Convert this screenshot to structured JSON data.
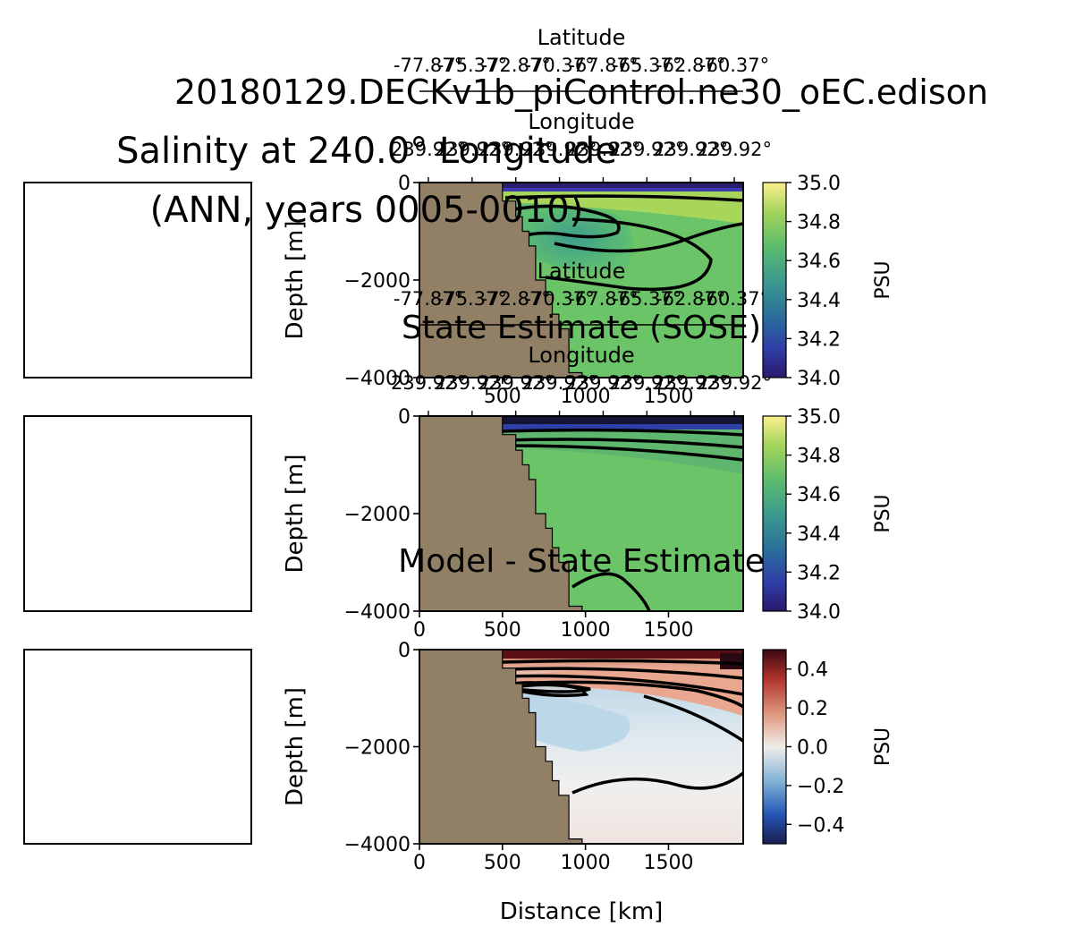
{
  "figure": {
    "title_line1": "Salinity at 240.0° Longitude",
    "title_line2": "(ANN, years 0005-0010)"
  },
  "chart_data": [
    {
      "type": "heatmap",
      "title": "20180129.DECKv1b_piControl.ne30_oEC.edison",
      "xlabel": "",
      "ylabel": "Depth [m]",
      "xlim": [
        0,
        1950
      ],
      "ylim": [
        -4000,
        0
      ],
      "xticks": [
        0,
        500,
        1000,
        1500
      ],
      "xtick_labels": [
        "",
        "500",
        "1000",
        "1500"
      ],
      "yticks": [
        0,
        -2000,
        -4000
      ],
      "ytick_labels": [
        "0",
        "−2000",
        "−4000"
      ],
      "secondary_axis_1_label": "Latitude",
      "secondary_axis_1_ticks": [
        "-77.87°",
        "-75.37°",
        "-72.87°",
        "-70.37°",
        "-67.87°",
        "-65.37°",
        "-62.87°",
        "-60.37°"
      ],
      "secondary_axis_2_label": "Longitude",
      "secondary_axis_2_ticks": [
        "239.92°",
        "239.92°",
        "239.92°",
        "239.92°",
        "239.92°",
        "239.92°",
        "239.92°",
        "239.92°"
      ],
      "colorbar_label": "PSU",
      "colormap": "haline",
      "colorbar_range": [
        34.0,
        35.0
      ],
      "colorbar_ticks": [
        "35.0",
        "34.8",
        "34.6",
        "34.4",
        "34.2",
        "34.0"
      ],
      "bathymetry": [
        [
          500,
          0
        ],
        [
          500,
          -380
        ],
        [
          580,
          -380
        ],
        [
          580,
          -700
        ],
        [
          620,
          -700
        ],
        [
          620,
          -1000
        ],
        [
          660,
          -1000
        ],
        [
          660,
          -1300
        ],
        [
          700,
          -1300
        ],
        [
          700,
          -2000
        ],
        [
          760,
          -2000
        ],
        [
          760,
          -2300
        ],
        [
          800,
          -2300
        ],
        [
          800,
          -2700
        ],
        [
          840,
          -2700
        ],
        [
          840,
          -3000
        ],
        [
          900,
          -3000
        ],
        [
          900,
          -3900
        ],
        [
          980,
          -3900
        ],
        [
          980,
          -4000
        ],
        [
          0,
          -4000
        ],
        [
          0,
          0
        ]
      ]
    },
    {
      "type": "heatmap",
      "title": "State Estimate (SOSE)",
      "xlabel": "",
      "ylabel": "Depth [m]",
      "xlim": [
        0,
        1950
      ],
      "ylim": [
        -4000,
        0
      ],
      "xticks": [
        0,
        500,
        1000,
        1500
      ],
      "xtick_labels": [
        "0",
        "500",
        "1000",
        "1500"
      ],
      "yticks": [
        0,
        -2000,
        -4000
      ],
      "ytick_labels": [
        "0",
        "−2000",
        "−4000"
      ],
      "secondary_axis_1_label": "Latitude",
      "secondary_axis_1_ticks": [
        "-77.87°",
        "-75.37°",
        "-72.87°",
        "-70.37°",
        "-67.87°",
        "-65.37°",
        "-62.87°",
        "-60.37°"
      ],
      "secondary_axis_2_label": "Longitude",
      "secondary_axis_2_ticks": [
        "239.92°",
        "239.92°",
        "239.92°",
        "239.92°",
        "239.92°",
        "239.92°",
        "239.92°",
        "239.92°"
      ],
      "colorbar_label": "PSU",
      "colormap": "haline",
      "colorbar_range": [
        34.0,
        35.0
      ],
      "colorbar_ticks": [
        "35.0",
        "34.8",
        "34.6",
        "34.4",
        "34.2",
        "34.0"
      ],
      "bathymetry": [
        [
          500,
          0
        ],
        [
          500,
          -380
        ],
        [
          580,
          -380
        ],
        [
          580,
          -700
        ],
        [
          620,
          -700
        ],
        [
          620,
          -1000
        ],
        [
          660,
          -1000
        ],
        [
          660,
          -1300
        ],
        [
          700,
          -1300
        ],
        [
          700,
          -2000
        ],
        [
          760,
          -2000
        ],
        [
          760,
          -2300
        ],
        [
          800,
          -2300
        ],
        [
          800,
          -2700
        ],
        [
          840,
          -2700
        ],
        [
          840,
          -3000
        ],
        [
          900,
          -3000
        ],
        [
          900,
          -3900
        ],
        [
          980,
          -3900
        ],
        [
          980,
          -4000
        ],
        [
          0,
          -4000
        ],
        [
          0,
          0
        ]
      ]
    },
    {
      "type": "heatmap",
      "title": "Model - State Estimate",
      "xlabel": "Distance [km]",
      "ylabel": "Depth [m]",
      "xlim": [
        0,
        1950
      ],
      "ylim": [
        -4000,
        0
      ],
      "xticks": [
        0,
        500,
        1000,
        1500
      ],
      "xtick_labels": [
        "0",
        "500",
        "1000",
        "1500"
      ],
      "yticks": [
        0,
        -2000,
        -4000
      ],
      "ytick_labels": [
        "0",
        "−2000",
        "−4000"
      ],
      "colorbar_label": "PSU",
      "colormap": "balance",
      "colorbar_range": [
        -0.5,
        0.5
      ],
      "colorbar_ticks": [
        "0.4",
        "0.2",
        "0.0",
        "−0.2",
        "−0.4"
      ],
      "colorbar_tick_values": [
        0.4,
        0.2,
        0.0,
        -0.2,
        -0.4
      ],
      "bathymetry": [
        [
          500,
          0
        ],
        [
          500,
          -380
        ],
        [
          580,
          -380
        ],
        [
          580,
          -700
        ],
        [
          620,
          -700
        ],
        [
          620,
          -1000
        ],
        [
          660,
          -1000
        ],
        [
          660,
          -1300
        ],
        [
          700,
          -1300
        ],
        [
          700,
          -2000
        ],
        [
          760,
          -2000
        ],
        [
          760,
          -2300
        ],
        [
          800,
          -2300
        ],
        [
          800,
          -2700
        ],
        [
          840,
          -2700
        ],
        [
          840,
          -3000
        ],
        [
          900,
          -3000
        ],
        [
          900,
          -3900
        ],
        [
          980,
          -3900
        ],
        [
          980,
          -4000
        ],
        [
          0,
          -4000
        ],
        [
          0,
          0
        ]
      ]
    }
  ],
  "colors": {
    "bathymetry": "#918065",
    "contour": "#000000",
    "haline_top": "#2a1d6e",
    "haline_low": "#3a3bb0",
    "haline_mid": "#4aa68c",
    "haline_main": "#6dc469",
    "haline_high": "#a7d65a",
    "haline_max": "#f7ec84",
    "diff_pos": "#b94b3a",
    "diff_neg": "#7fb3cf",
    "diff_zero": "#f0ebe6"
  }
}
